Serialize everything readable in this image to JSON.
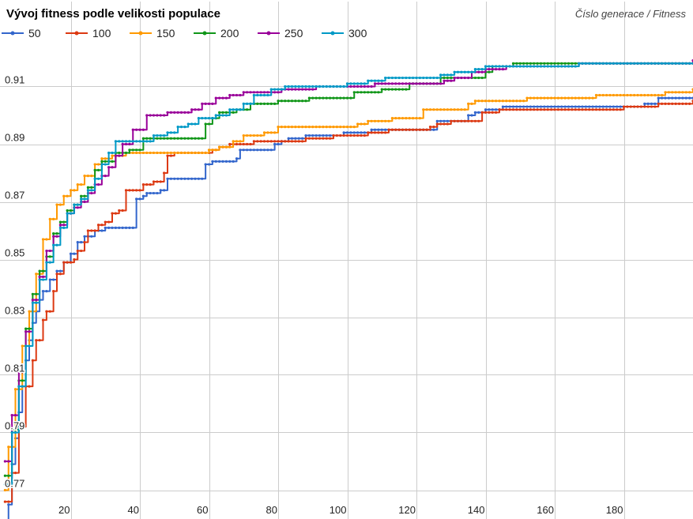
{
  "chart_data": {
    "type": "line",
    "title": "Vývoj fitness podle velikosti populace",
    "subtitle": "Číslo generace / Fitness",
    "xlabel": "",
    "ylabel": "",
    "xlim": [
      0,
      200
    ],
    "ylim": [
      0.76,
      0.92
    ],
    "x_ticks": [
      "20",
      "40",
      "60",
      "80",
      "100",
      "120",
      "140",
      "160",
      "180"
    ],
    "y_ticks": [
      "0.77",
      "0.79",
      "0.81",
      "0.83",
      "0.85",
      "0.87",
      "0.89",
      "0.91"
    ],
    "grid": true,
    "legend_position": "top-left",
    "series": [
      {
        "name": "50",
        "color": "#3366cc",
        "points": [
          [
            1,
            0.757
          ],
          [
            2,
            0.765
          ],
          [
            3,
            0.779
          ],
          [
            4,
            0.788
          ],
          [
            5,
            0.797
          ],
          [
            6,
            0.806
          ],
          [
            7,
            0.815
          ],
          [
            8,
            0.822
          ],
          [
            9,
            0.828
          ],
          [
            10,
            0.832
          ],
          [
            11,
            0.836
          ],
          [
            12,
            0.839
          ],
          [
            14,
            0.843
          ],
          [
            16,
            0.846
          ],
          [
            18,
            0.849
          ],
          [
            20,
            0.852
          ],
          [
            22,
            0.856
          ],
          [
            24,
            0.858
          ],
          [
            27,
            0.86
          ],
          [
            30,
            0.861
          ],
          [
            38,
            0.861
          ],
          [
            39,
            0.871
          ],
          [
            41,
            0.872
          ],
          [
            42,
            0.873
          ],
          [
            46,
            0.874
          ],
          [
            48,
            0.878
          ],
          [
            58,
            0.878
          ],
          [
            59,
            0.883
          ],
          [
            61,
            0.884
          ],
          [
            68,
            0.885
          ],
          [
            69,
            0.888
          ],
          [
            78,
            0.888
          ],
          [
            79,
            0.89
          ],
          [
            81,
            0.891
          ],
          [
            83,
            0.892
          ],
          [
            88,
            0.893
          ],
          [
            98,
            0.893
          ],
          [
            99,
            0.894
          ],
          [
            106,
            0.894
          ],
          [
            107,
            0.895
          ],
          [
            125,
            0.895
          ],
          [
            126,
            0.898
          ],
          [
            135,
            0.9
          ],
          [
            137,
            0.901
          ],
          [
            140,
            0.902
          ],
          [
            145,
            0.903
          ],
          [
            180,
            0.903
          ],
          [
            186,
            0.904
          ],
          [
            190,
            0.906
          ],
          [
            200,
            0.906
          ]
        ]
      },
      {
        "name": "100",
        "color": "#dc3912",
        "points": [
          [
            1,
            0.766
          ],
          [
            3,
            0.776
          ],
          [
            5,
            0.792
          ],
          [
            7,
            0.806
          ],
          [
            9,
            0.815
          ],
          [
            10,
            0.822
          ],
          [
            12,
            0.829
          ],
          [
            13,
            0.832
          ],
          [
            15,
            0.839
          ],
          [
            16,
            0.845
          ],
          [
            18,
            0.849
          ],
          [
            21,
            0.85
          ],
          [
            22,
            0.853
          ],
          [
            24,
            0.856
          ],
          [
            25,
            0.86
          ],
          [
            28,
            0.862
          ],
          [
            30,
            0.863
          ],
          [
            32,
            0.866
          ],
          [
            34,
            0.867
          ],
          [
            36,
            0.874
          ],
          [
            41,
            0.876
          ],
          [
            44,
            0.877
          ],
          [
            47,
            0.88
          ],
          [
            48,
            0.886
          ],
          [
            50,
            0.887
          ],
          [
            61,
            0.888
          ],
          [
            63,
            0.889
          ],
          [
            66,
            0.89
          ],
          [
            73,
            0.891
          ],
          [
            88,
            0.892
          ],
          [
            96,
            0.893
          ],
          [
            106,
            0.894
          ],
          [
            112,
            0.895
          ],
          [
            124,
            0.896
          ],
          [
            126,
            0.897
          ],
          [
            130,
            0.898
          ],
          [
            138,
            0.898
          ],
          [
            139,
            0.901
          ],
          [
            144,
            0.902
          ],
          [
            180,
            0.903
          ],
          [
            190,
            0.904
          ],
          [
            200,
            0.905
          ]
        ]
      },
      {
        "name": "150",
        "color": "#ff9900",
        "points": [
          [
            1,
            0.77
          ],
          [
            2,
            0.785
          ],
          [
            4,
            0.805
          ],
          [
            6,
            0.82
          ],
          [
            8,
            0.832
          ],
          [
            10,
            0.845
          ],
          [
            12,
            0.857
          ],
          [
            14,
            0.864
          ],
          [
            16,
            0.869
          ],
          [
            18,
            0.872
          ],
          [
            20,
            0.874
          ],
          [
            22,
            0.876
          ],
          [
            24,
            0.879
          ],
          [
            27,
            0.883
          ],
          [
            29,
            0.885
          ],
          [
            32,
            0.886
          ],
          [
            36,
            0.887
          ],
          [
            58,
            0.887
          ],
          [
            60,
            0.888
          ],
          [
            63,
            0.889
          ],
          [
            67,
            0.891
          ],
          [
            70,
            0.893
          ],
          [
            76,
            0.894
          ],
          [
            80,
            0.896
          ],
          [
            100,
            0.896
          ],
          [
            103,
            0.897
          ],
          [
            106,
            0.898
          ],
          [
            110,
            0.898
          ],
          [
            113,
            0.899
          ],
          [
            121,
            0.899
          ],
          [
            122,
            0.902
          ],
          [
            134,
            0.902
          ],
          [
            135,
            0.904
          ],
          [
            137,
            0.905
          ],
          [
            150,
            0.905
          ],
          [
            152,
            0.906
          ],
          [
            170,
            0.906
          ],
          [
            172,
            0.907
          ],
          [
            190,
            0.907
          ],
          [
            192,
            0.908
          ],
          [
            200,
            0.909
          ]
        ]
      },
      {
        "name": "200",
        "color": "#109618",
        "points": [
          [
            1,
            0.775
          ],
          [
            3,
            0.791
          ],
          [
            5,
            0.808
          ],
          [
            7,
            0.826
          ],
          [
            9,
            0.838
          ],
          [
            11,
            0.846
          ],
          [
            13,
            0.851
          ],
          [
            15,
            0.859
          ],
          [
            17,
            0.863
          ],
          [
            19,
            0.867
          ],
          [
            21,
            0.869
          ],
          [
            23,
            0.872
          ],
          [
            25,
            0.875
          ],
          [
            27,
            0.881
          ],
          [
            29,
            0.884
          ],
          [
            31,
            0.884
          ],
          [
            33,
            0.887
          ],
          [
            37,
            0.888
          ],
          [
            41,
            0.892
          ],
          [
            57,
            0.892
          ],
          [
            59,
            0.897
          ],
          [
            61,
            0.899
          ],
          [
            63,
            0.901
          ],
          [
            68,
            0.902
          ],
          [
            72,
            0.904
          ],
          [
            80,
            0.905
          ],
          [
            88,
            0.905
          ],
          [
            89,
            0.906
          ],
          [
            100,
            0.906
          ],
          [
            102,
            0.908
          ],
          [
            108,
            0.908
          ],
          [
            110,
            0.909
          ],
          [
            115,
            0.909
          ],
          [
            118,
            0.911
          ],
          [
            126,
            0.911
          ],
          [
            127,
            0.913
          ],
          [
            137,
            0.913
          ],
          [
            140,
            0.915
          ],
          [
            142,
            0.917
          ],
          [
            146,
            0.917
          ],
          [
            148,
            0.918
          ],
          [
            200,
            0.918
          ]
        ]
      },
      {
        "name": "250",
        "color": "#990099",
        "points": [
          [
            1,
            0.78
          ],
          [
            3,
            0.796
          ],
          [
            5,
            0.811
          ],
          [
            7,
            0.825
          ],
          [
            9,
            0.836
          ],
          [
            11,
            0.844
          ],
          [
            13,
            0.853
          ],
          [
            15,
            0.858
          ],
          [
            17,
            0.862
          ],
          [
            19,
            0.866
          ],
          [
            21,
            0.868
          ],
          [
            23,
            0.87
          ],
          [
            25,
            0.873
          ],
          [
            27,
            0.876
          ],
          [
            29,
            0.879
          ],
          [
            31,
            0.882
          ],
          [
            33,
            0.886
          ],
          [
            35,
            0.89
          ],
          [
            38,
            0.895
          ],
          [
            42,
            0.9
          ],
          [
            48,
            0.901
          ],
          [
            55,
            0.902
          ],
          [
            58,
            0.904
          ],
          [
            62,
            0.906
          ],
          [
            66,
            0.907
          ],
          [
            70,
            0.908
          ],
          [
            79,
            0.908
          ],
          [
            81,
            0.909
          ],
          [
            89,
            0.909
          ],
          [
            91,
            0.91
          ],
          [
            105,
            0.91
          ],
          [
            108,
            0.911
          ],
          [
            126,
            0.911
          ],
          [
            128,
            0.912
          ],
          [
            131,
            0.913
          ],
          [
            136,
            0.915
          ],
          [
            140,
            0.916
          ],
          [
            146,
            0.917
          ],
          [
            165,
            0.917
          ],
          [
            167,
            0.918
          ],
          [
            199,
            0.918
          ],
          [
            200,
            0.919
          ]
        ]
      },
      {
        "name": "300",
        "color": "#0099c6",
        "points": [
          [
            1,
            0.772
          ],
          [
            3,
            0.79
          ],
          [
            5,
            0.806
          ],
          [
            7,
            0.82
          ],
          [
            9,
            0.835
          ],
          [
            11,
            0.843
          ],
          [
            13,
            0.849
          ],
          [
            15,
            0.855
          ],
          [
            17,
            0.861
          ],
          [
            19,
            0.866
          ],
          [
            21,
            0.869
          ],
          [
            23,
            0.871
          ],
          [
            25,
            0.874
          ],
          [
            27,
            0.878
          ],
          [
            29,
            0.883
          ],
          [
            31,
            0.887
          ],
          [
            33,
            0.891
          ],
          [
            44,
            0.893
          ],
          [
            48,
            0.894
          ],
          [
            51,
            0.896
          ],
          [
            54,
            0.897
          ],
          [
            57,
            0.899
          ],
          [
            62,
            0.9
          ],
          [
            66,
            0.902
          ],
          [
            70,
            0.904
          ],
          [
            73,
            0.907
          ],
          [
            78,
            0.909
          ],
          [
            82,
            0.91
          ],
          [
            99,
            0.91
          ],
          [
            100,
            0.911
          ],
          [
            104,
            0.911
          ],
          [
            106,
            0.912
          ],
          [
            111,
            0.913
          ],
          [
            124,
            0.913
          ],
          [
            127,
            0.914
          ],
          [
            131,
            0.915
          ],
          [
            137,
            0.916
          ],
          [
            140,
            0.917
          ],
          [
            164,
            0.917
          ],
          [
            167,
            0.918
          ],
          [
            200,
            0.918
          ]
        ]
      }
    ]
  }
}
